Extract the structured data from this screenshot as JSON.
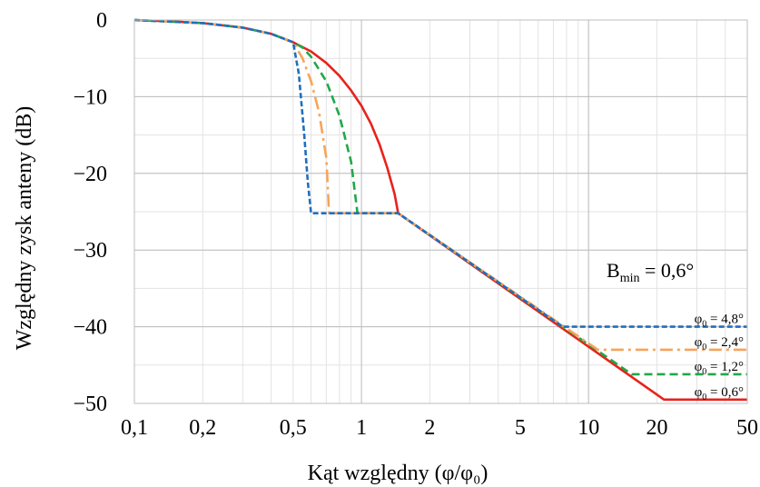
{
  "chart_data": {
    "type": "line",
    "xlabel": "Kąt względny (φ/φ₀)",
    "ylabel": "Względny zysk anteny (dB)",
    "x_scale": "log",
    "xlim": [
      0.1,
      50
    ],
    "ylim": [
      -50,
      0
    ],
    "x_ticks": [
      "0,1",
      "0,2",
      "0,5",
      "1",
      "2",
      "5",
      "10",
      "20",
      "50"
    ],
    "y_ticks": [
      "0",
      "−10",
      "−20",
      "−30",
      "−40",
      "−50"
    ],
    "grid": true,
    "annotation": {
      "prefix": "B",
      "subscript": "min",
      "suffix": " = 0,6°"
    },
    "series": [
      {
        "base": "φ",
        "sub": "0",
        "rest": " = 0,6°",
        "color": "#e8221b",
        "dash": "solid",
        "points": [
          [
            0.1,
            0
          ],
          [
            0.15,
            -0.2
          ],
          [
            0.2,
            -0.4
          ],
          [
            0.3,
            -1.0
          ],
          [
            0.4,
            -1.8
          ],
          [
            0.5,
            -2.9
          ],
          [
            0.6,
            -4.1
          ],
          [
            0.7,
            -5.6
          ],
          [
            0.8,
            -7.3
          ],
          [
            0.9,
            -9.2
          ],
          [
            1.0,
            -11.2
          ],
          [
            1.1,
            -13.5
          ],
          [
            1.2,
            -16.2
          ],
          [
            1.3,
            -19.3
          ],
          [
            1.4,
            -22.7
          ],
          [
            1.45,
            -25.2
          ],
          [
            21.5,
            -49.5
          ],
          [
            50,
            -49.5
          ]
        ]
      },
      {
        "base": "φ",
        "sub": "0",
        "rest": " = 1,2°",
        "color": "#22a84a",
        "dash": "dashed",
        "points": [
          [
            0.1,
            0
          ],
          [
            0.2,
            -0.4
          ],
          [
            0.3,
            -1.0
          ],
          [
            0.4,
            -1.8
          ],
          [
            0.5,
            -2.9
          ],
          [
            0.55,
            -3.6
          ],
          [
            0.6,
            -4.8
          ],
          [
            0.7,
            -8.0
          ],
          [
            0.8,
            -12.5
          ],
          [
            0.9,
            -18.5
          ],
          [
            0.96,
            -25.2
          ],
          [
            1.45,
            -25.2
          ],
          [
            15.5,
            -46.2
          ],
          [
            50,
            -46.2
          ]
        ]
      },
      {
        "base": "φ",
        "sub": "0",
        "rest": " = 2,4°",
        "color": "#f7a45a",
        "dash": "dashdot",
        "points": [
          [
            0.1,
            0
          ],
          [
            0.2,
            -0.4
          ],
          [
            0.3,
            -1.0
          ],
          [
            0.4,
            -1.8
          ],
          [
            0.5,
            -2.9
          ],
          [
            0.55,
            -5.0
          ],
          [
            0.6,
            -8.0
          ],
          [
            0.65,
            -12.0
          ],
          [
            0.7,
            -18.0
          ],
          [
            0.72,
            -25.2
          ],
          [
            1.45,
            -25.2
          ],
          [
            11.0,
            -43.0
          ],
          [
            50,
            -43.0
          ]
        ]
      },
      {
        "base": "φ",
        "sub": "0",
        "rest": " = 4,8°",
        "color": "#1f6fbf",
        "dash": "dotted",
        "points": [
          [
            0.1,
            0
          ],
          [
            0.2,
            -0.4
          ],
          [
            0.3,
            -1.0
          ],
          [
            0.4,
            -1.8
          ],
          [
            0.5,
            -2.9
          ],
          [
            0.53,
            -7.0
          ],
          [
            0.56,
            -15.0
          ],
          [
            0.58,
            -21.0
          ],
          [
            0.6,
            -25.2
          ],
          [
            1.45,
            -25.2
          ],
          [
            7.7,
            -40.0
          ],
          [
            50,
            -40.0
          ]
        ]
      }
    ]
  }
}
